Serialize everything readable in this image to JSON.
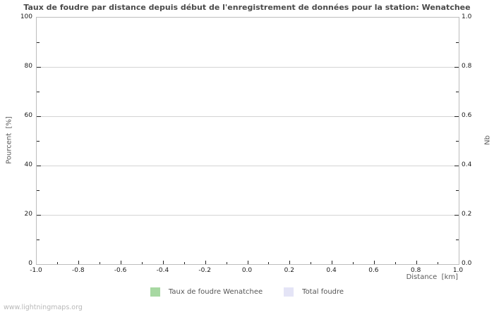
{
  "page": {
    "watermark": "www.lightningmaps.org"
  },
  "colors": {
    "grid": "#d4d4d4",
    "border": "#bdbdbd",
    "tick": "#222222",
    "title_text": "#4a4a4a",
    "axis_label_text": "#5a5a5a",
    "tick_label_text": "#1a1a1a",
    "series_green": "#a7d8a2",
    "series_lavender": "#e4e4f6"
  },
  "chart_data": {
    "type": "bar",
    "title": "Taux de foudre par distance depuis début de l'enregistrement de données pour la station: Wenatchee",
    "subtitle": "",
    "grid": "horizontal-major-only",
    "legend_position": "bottom-center",
    "x_axis": {
      "label": "Distance  [km]",
      "range": [
        -1.0,
        1.0
      ],
      "ticks": [
        -1.0,
        -0.8,
        -0.6,
        -0.4,
        -0.2,
        0.0,
        0.2,
        0.4,
        0.6,
        0.8,
        1.0
      ],
      "tick_labels": [
        "-1.0",
        "-0.8",
        "-0.6",
        "-0.4",
        "-0.2",
        "0.0",
        "0.2",
        "0.4",
        "0.6",
        "0.8",
        "1.0"
      ],
      "minor_step": 0.1
    },
    "left_axis": {
      "label": "Pourcent  [%]",
      "range": [
        0,
        100
      ],
      "ticks": [
        0,
        20,
        40,
        60,
        80,
        100
      ],
      "tick_labels": [
        "0",
        "20",
        "40",
        "60",
        "80",
        "100"
      ],
      "minor_step": 10
    },
    "right_axis": {
      "label": "Nb",
      "range": [
        0.0,
        1.0
      ],
      "ticks": [
        0.0,
        0.2,
        0.4,
        0.6,
        0.8,
        1.0
      ],
      "tick_labels": [
        "0.0",
        "0.2",
        "0.4",
        "0.6",
        "0.8",
        "1.0"
      ],
      "minor_step": 0.1
    },
    "series": [
      {
        "name": "Taux de foudre Wenatchee",
        "color": "#a7d8a2",
        "values": []
      },
      {
        "name": "Total foudre",
        "color": "#e4e4f6",
        "values": []
      }
    ],
    "note": "plot area is empty - no data points drawn"
  }
}
